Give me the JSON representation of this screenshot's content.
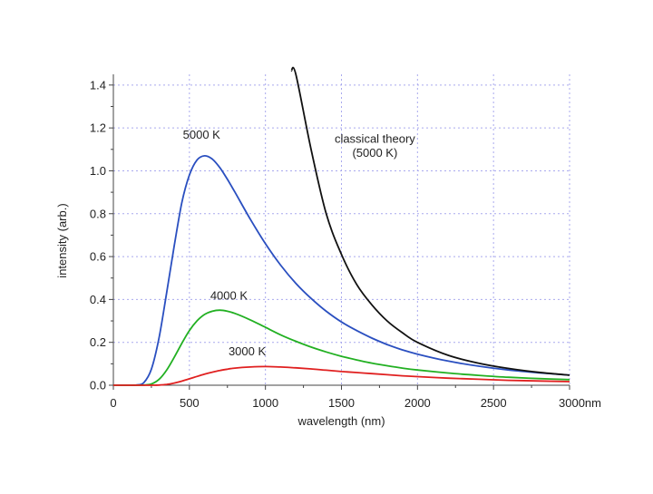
{
  "chart_data": {
    "type": "line",
    "title": "",
    "xlabel": "wavelength (nm)",
    "ylabel": "intensity (arb.)",
    "xlim": [
      0,
      3000
    ],
    "ylim": [
      0,
      1.45
    ],
    "x_ticks": [
      0,
      500,
      1000,
      1500,
      2000,
      2500,
      3000
    ],
    "x_tick_labels": [
      "0",
      "500",
      "1000",
      "1500",
      "2000",
      "2500",
      "3000nm"
    ],
    "y_ticks": [
      0,
      0.2,
      0.4,
      0.6,
      0.8,
      1.0,
      1.2,
      1.4
    ],
    "y_tick_labels": [
      "0.0",
      "0.2",
      "0.4",
      "0.6",
      "0.8",
      "1.0",
      "1.2",
      "1.4"
    ],
    "grid": true,
    "x": [
      50,
      100,
      150,
      200,
      250,
      300,
      350,
      400,
      450,
      500,
      550,
      600,
      650,
      700,
      750,
      800,
      900,
      1000,
      1100,
      1200,
      1300,
      1400,
      1500,
      1600,
      1700,
      1800,
      1900,
      2000,
      2200,
      2400,
      2600,
      2800,
      3000
    ],
    "series": [
      {
        "name": "5000 K",
        "color": "#2a4fc0",
        "values": [
          0,
          0,
          0.001,
          0.012,
          0.075,
          0.22,
          0.43,
          0.65,
          0.85,
          0.98,
          1.05,
          1.07,
          1.055,
          1.015,
          0.96,
          0.9,
          0.775,
          0.66,
          0.56,
          0.475,
          0.405,
          0.345,
          0.295,
          0.255,
          0.22,
          0.19,
          0.165,
          0.145,
          0.113,
          0.089,
          0.071,
          0.058,
          0.047
        ]
      },
      {
        "name": "4000 K",
        "color": "#22b022",
        "values": [
          0,
          0,
          0,
          0.001,
          0.006,
          0.027,
          0.07,
          0.13,
          0.195,
          0.255,
          0.3,
          0.33,
          0.345,
          0.35,
          0.345,
          0.335,
          0.305,
          0.27,
          0.235,
          0.205,
          0.178,
          0.155,
          0.135,
          0.118,
          0.103,
          0.091,
          0.08,
          0.071,
          0.057,
          0.046,
          0.037,
          0.031,
          0.026
        ]
      },
      {
        "name": "3000 K",
        "color": "#e02020",
        "values": [
          0,
          0,
          0,
          0,
          0,
          0.001,
          0.004,
          0.01,
          0.019,
          0.03,
          0.041,
          0.052,
          0.061,
          0.069,
          0.075,
          0.08,
          0.085,
          0.087,
          0.085,
          0.081,
          0.076,
          0.07,
          0.064,
          0.059,
          0.054,
          0.049,
          0.044,
          0.04,
          0.033,
          0.028,
          0.023,
          0.02,
          0.017
        ]
      },
      {
        "name": "classical theory (5000 K)",
        "color": "#111111",
        "values": [
          null,
          null,
          null,
          null,
          null,
          null,
          null,
          null,
          null,
          null,
          null,
          null,
          null,
          null,
          null,
          null,
          null,
          null,
          null,
          1.45,
          1.1,
          0.8,
          0.61,
          0.47,
          0.375,
          0.3,
          0.245,
          0.2,
          0.14,
          0.103,
          0.078,
          0.06,
          0.047
        ]
      }
    ],
    "annotations": [
      {
        "text": "5000 K",
        "series": 0
      },
      {
        "text": "4000 K",
        "series": 1
      },
      {
        "text": "3000 K",
        "series": 2
      },
      {
        "text": "classical theory",
        "series": 3
      },
      {
        "text": "(5000 K)",
        "series": 3
      }
    ]
  }
}
